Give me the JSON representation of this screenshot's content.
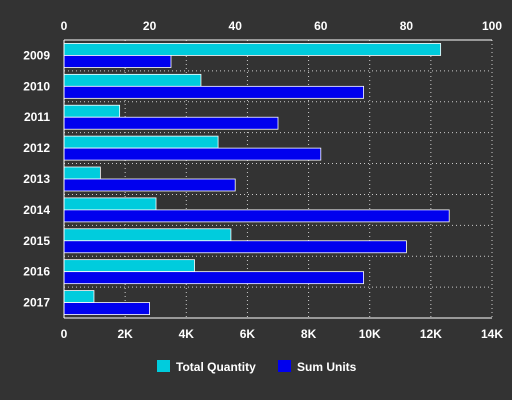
{
  "chart_data": {
    "type": "bar",
    "orientation": "horizontal",
    "categories": [
      "2009",
      "2010",
      "2011",
      "2012",
      "2013",
      "2014",
      "2015",
      "2016",
      "2017"
    ],
    "series": [
      {
        "name": "Total Quantity",
        "axis": "top",
        "color": "#00CCDD",
        "values": [
          88,
          32,
          13,
          36,
          8.5,
          21.5,
          39,
          30.5,
          7
        ]
      },
      {
        "name": "Sum Units",
        "axis": "bottom",
        "color": "#0000EE",
        "values": [
          3500,
          9800,
          7000,
          8400,
          5600,
          12600,
          11200,
          9800,
          2800
        ]
      }
    ],
    "top_axis": {
      "ticks": [
        0,
        20,
        40,
        60,
        80,
        100
      ],
      "tick_labels": [
        "0",
        "20",
        "40",
        "60",
        "80",
        "100"
      ],
      "range": [
        0,
        100
      ]
    },
    "bottom_axis": {
      "ticks": [
        0,
        2000,
        4000,
        6000,
        8000,
        10000,
        12000,
        14000
      ],
      "tick_labels": [
        "0",
        "2K",
        "4K",
        "6K",
        "8K",
        "10K",
        "12K",
        "14K"
      ],
      "range": [
        0,
        14000
      ]
    },
    "grid": true,
    "legend_position": "bottom",
    "legend": [
      "Total Quantity",
      "Sum Units"
    ]
  }
}
